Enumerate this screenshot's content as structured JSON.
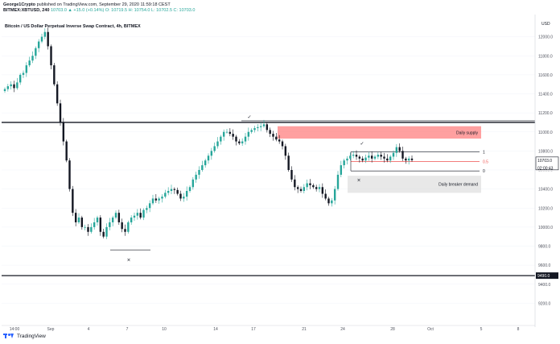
{
  "header": {
    "author": "George1Crypto",
    "published": "published on TradingView.com, September 29, 2020 11:59:18 CEST",
    "symbol": "BITMEX:XBTUSD, 240",
    "quote": "10703.0 ▲ +15.0 (+0.14%) O: 10719.5 H: 10754.0 L: 10702.5 C: 10703.0"
  },
  "footer": {
    "brand": "TradingView"
  },
  "colors": {
    "up": "#26a69a",
    "down": "#131722",
    "supply": "#ff5252",
    "demand": "#d5d5d5",
    "level": "#131722"
  },
  "chart_data": {
    "type": "candlestick",
    "title": "Bitcoin / US Dollar Perpetual Inverse Swap Contract, 4h, BITMEX",
    "currency_label": "USD",
    "ylim": [
      9000,
      12200
    ],
    "y_ticks": [
      "12000.0",
      "11800.0",
      "11600.0",
      "11400.0",
      "11200.0",
      "11000.0",
      "10800.0",
      "10600.0",
      "10400.0",
      "10200.0",
      "10000.0",
      "9800.0",
      "9600.0",
      "9400.0",
      "9200.0"
    ],
    "x_ticks": [
      "14:00",
      "Sep",
      "4",
      "7",
      "10",
      "14",
      "17",
      "21",
      "24",
      "28",
      "Oct",
      "5",
      "8"
    ],
    "last_price": "10703.0",
    "countdown": "02:00:43",
    "level_label": "9490.0",
    "horizontal_levels": [
      11100,
      9490
    ],
    "zones": [
      {
        "label": "Daily supply",
        "from": 10930,
        "to": 11060,
        "color": "#ff5252"
      },
      {
        "label": "Daily breaker demand",
        "from": 10360,
        "to": 10540,
        "color": "#d5d5d5"
      }
    ],
    "fib_levels": [
      {
        "label": "1",
        "value": 10790
      },
      {
        "label": "0.5",
        "value": 10690
      },
      {
        "label": "0",
        "value": 10590
      }
    ],
    "markers": [
      {
        "symbol": "×",
        "value": 9690
      },
      {
        "symbol": "✓",
        "value": 11110
      },
      {
        "symbol": "✓",
        "value": 10830
      },
      {
        "symbol": "×",
        "value": 10530
      }
    ],
    "close_path": [
      11450,
      11480,
      11500,
      11460,
      11520,
      11600,
      11620,
      11700,
      11750,
      11800,
      11880,
      11950,
      12000,
      12050,
      11900,
      11700,
      11500,
      11300,
      11100,
      10900,
      10700,
      10400,
      10150,
      10050,
      10100,
      10000,
      10000,
      9950,
      10000,
      10050,
      10100,
      9950,
      9900,
      10000,
      10050,
      10100,
      10150,
      10050,
      9980,
      9950,
      10050,
      10100,
      10120,
      10150,
      10100,
      10180,
      10200,
      10250,
      10300,
      10280,
      10300,
      10320,
      10360,
      10380,
      10400,
      10390,
      10350,
      10300,
      10320,
      10380,
      10420,
      10500,
      10550,
      10600,
      10650,
      10700,
      10750,
      10800,
      10850,
      10900,
      10950,
      11000,
      11000,
      10980,
      10950,
      10900,
      10880,
      10900,
      10950,
      11000,
      11020,
      11040,
      11050,
      11060,
      11080,
      11020,
      10980,
      10950,
      10920,
      10900,
      10850,
      10750,
      10600,
      10500,
      10420,
      10400,
      10380,
      10420,
      10460,
      10440,
      10420,
      10400,
      10420,
      10350,
      10300,
      10250,
      10280,
      10400,
      10550,
      10650,
      10700,
      10720,
      10750,
      10760,
      10740,
      10720,
      10700,
      10730,
      10750,
      10720,
      10740,
      10760,
      10740,
      10720,
      10700,
      10740,
      10780,
      10840,
      10800,
      10720,
      10700,
      10720,
      10703
    ]
  }
}
